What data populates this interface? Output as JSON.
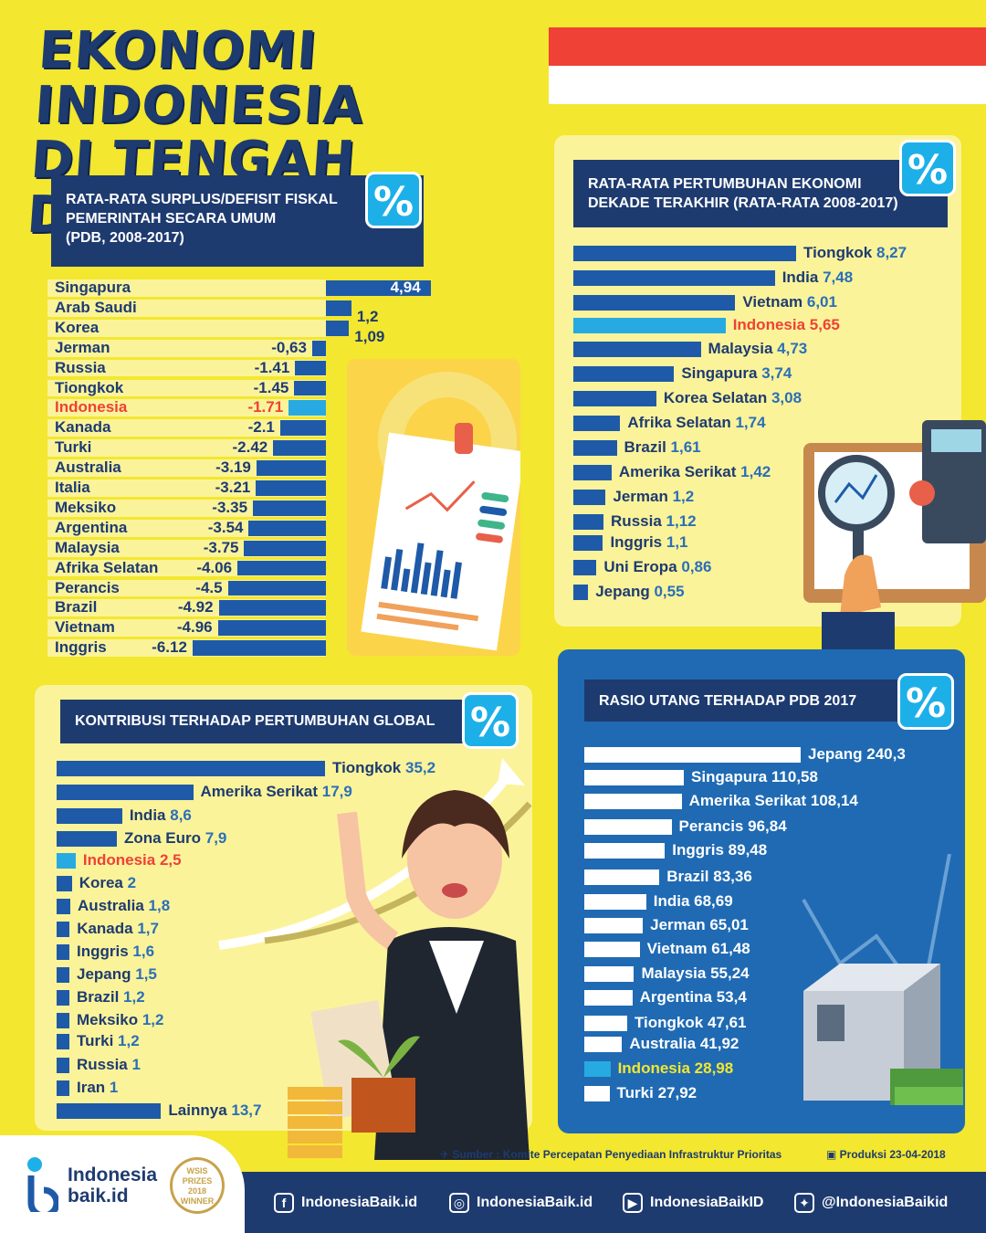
{
  "title_line1": "EKONOMI INDONESIA",
  "title_line2": "DI TENGAH DUNIA",
  "colors": {
    "navy": "#1e3b70",
    "bar_blue": "#1e5aa8",
    "highlight": "#27aae1",
    "red": "#ef4136",
    "yellow": "#f3e72f"
  },
  "chart_data": [
    {
      "type": "bar",
      "title": "RATA-RATA SURPLUS/DEFISIT FISKAL PEMERINTAH SECARA UMUM (PDB, 2008-2017)",
      "categories": [
        "Singapura",
        "Arab Saudi",
        "Korea",
        "Jerman",
        "Russia",
        "Tiongkok",
        "Indonesia",
        "Kanada",
        "Turki",
        "Australia",
        "Italia",
        "Meksiko",
        "Argentina",
        "Malaysia",
        "Afrika Selatan",
        "Perancis",
        "Brazil",
        "Vietnam",
        "Inggris"
      ],
      "values": [
        4.94,
        1.2,
        1.09,
        -0.63,
        -1.41,
        -1.45,
        -1.71,
        -2.1,
        -2.42,
        -3.19,
        -3.21,
        -3.35,
        -3.54,
        -3.75,
        -4.06,
        -4.5,
        -4.92,
        -4.96,
        -6.12
      ],
      "labels": [
        "4,94",
        "1,2",
        "1,09",
        "-0,63",
        "-1.41",
        "-1.45",
        "-1.71",
        "-2.1",
        "-2.42",
        "-3.19",
        "-3.21",
        "-3.35",
        "-3.54",
        "-3.75",
        "-4.06",
        "-4.5",
        "-4.92",
        "-4.96",
        "-6.12"
      ],
      "highlight": "Indonesia"
    },
    {
      "type": "bar",
      "title": "RATA-RATA PERTUMBUHAN EKONOMI DEKADE TERAKHIR (RATA-RATA 2008-2017)",
      "categories": [
        "Tiongkok",
        "India",
        "Vietnam",
        "Indonesia",
        "Malaysia",
        "Singapura",
        "Korea Selatan",
        "Afrika Selatan",
        "Brazil",
        "Amerika Serikat",
        "Jerman",
        "Russia",
        "Inggris",
        "Uni Eropa",
        "Jepang"
      ],
      "values": [
        8.27,
        7.48,
        6.01,
        5.65,
        4.73,
        3.74,
        3.08,
        1.74,
        1.61,
        1.42,
        1.2,
        1.12,
        1.1,
        0.86,
        0.55
      ],
      "labels": [
        "8,27",
        "7,48",
        "6,01",
        "5,65",
        "4,73",
        "3,74",
        "3,08",
        "1,74",
        "1,61",
        "1,42",
        "1,2",
        "1,12",
        "1,1",
        "0,86",
        "0,55"
      ],
      "highlight": "Indonesia"
    },
    {
      "type": "bar",
      "title": "KONTRIBUSI TERHADAP PERTUMBUHAN GLOBAL",
      "categories": [
        "Tiongkok",
        "Amerika Serikat",
        "India",
        "Zona Euro",
        "Indonesia",
        "Korea",
        "Australia",
        "Kanada",
        "Inggris",
        "Jepang",
        "Brazil",
        "Meksiko",
        "Turki",
        "Russia",
        "Iran",
        "Lainnya"
      ],
      "values": [
        35.2,
        17.9,
        8.6,
        7.9,
        2.5,
        2,
        1.8,
        1.7,
        1.6,
        1.5,
        1.2,
        1.2,
        1.2,
        1,
        1,
        13.7
      ],
      "labels": [
        "35,2",
        "17,9",
        "8,6",
        "7,9",
        "2,5",
        "2",
        "1,8",
        "1,7",
        "1,6",
        "1,5",
        "1,2",
        "1,2",
        "1,2",
        "1",
        "1",
        "13,7"
      ],
      "highlight": "Indonesia"
    },
    {
      "type": "bar",
      "title": "RASIO UTANG TERHADAP PDB 2017",
      "categories": [
        "Jepang",
        "Singapura",
        "Amerika Serikat",
        "Perancis",
        "Inggris",
        "Brazil",
        "India",
        "Jerman",
        "Vietnam",
        "Malaysia",
        "Argentina",
        "Tiongkok",
        "Australia",
        "Indonesia",
        "Turki"
      ],
      "values": [
        240.3,
        110.58,
        108.14,
        96.84,
        89.48,
        83.36,
        68.69,
        65.01,
        61.48,
        55.24,
        53.4,
        47.61,
        41.92,
        28.98,
        27.92
      ],
      "labels": [
        "240,3",
        "110,58",
        "108,14",
        "96,84",
        "89,48",
        "83,36",
        "68,69",
        "65,01",
        "61,48",
        "55,24",
        "53,4",
        "47,61",
        "41,92",
        "28,98",
        "27,92"
      ],
      "highlight": "Indonesia"
    }
  ],
  "panel_titles": {
    "fiscal_l1": "RATA-RATA SURPLUS/DEFISIT FISKAL",
    "fiscal_l2": "PEMERINTAH SECARA UMUM",
    "fiscal_l3": "(PDB, 2008-2017)",
    "growth_l1": "RATA-RATA PERTUMBUHAN EKONOMI",
    "growth_l2": "DEKADE TERAKHIR (RATA-RATA 2008-2017)",
    "contrib": "KONTRIBUSI TERHADAP PERTUMBUHAN GLOBAL",
    "debt": "RASIO UTANG TERHADAP PDB 2017",
    "pct_symbol": "%"
  },
  "source": "Sumber : Komite Percepatan Penyediaan Infrastruktur Prioritas",
  "production": "Produksi 23-04-2018",
  "logo": {
    "line1": "Indonesia",
    "line2": "baik.id",
    "badge_l1": "WSIS",
    "badge_l2": "PRIZES",
    "badge_l3": "2018",
    "badge_l4": "WINNER"
  },
  "social": [
    {
      "icon": "facebook-icon",
      "label": "IndonesiaBaik.id",
      "glyph": "f"
    },
    {
      "icon": "instagram-icon",
      "label": "IndonesiaBaik.id",
      "glyph": "◎"
    },
    {
      "icon": "youtube-icon",
      "label": "IndonesiaBaikID",
      "glyph": "▶"
    },
    {
      "icon": "twitter-icon",
      "label": "@IndonesiaBaikid",
      "glyph": "✦"
    }
  ]
}
